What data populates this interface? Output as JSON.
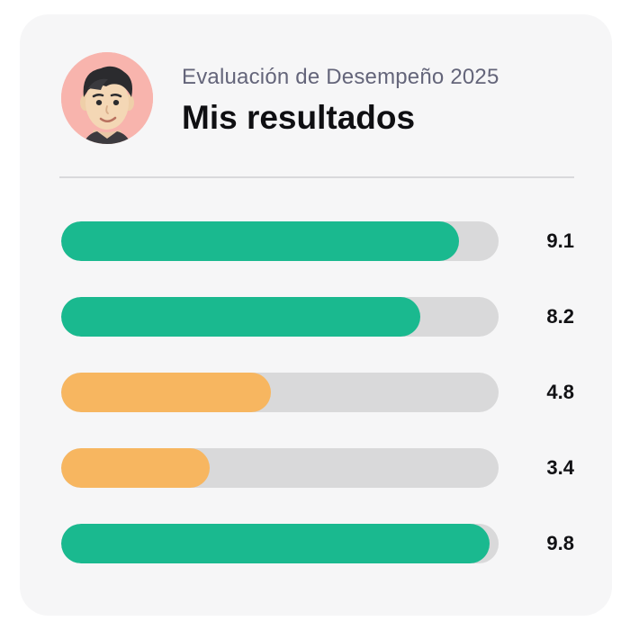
{
  "header": {
    "subtitle": "Evaluación de Desempeño 2025",
    "title": "Mis resultados",
    "avatar_bg": "#f8b4ad"
  },
  "results": {
    "max_score": 10,
    "colors": {
      "high": "#1ab98f",
      "low": "#f7b660",
      "track": "#d9d9da"
    },
    "items": [
      {
        "score": "9.1",
        "level": "high"
      },
      {
        "score": "8.2",
        "level": "high"
      },
      {
        "score": "4.8",
        "level": "low"
      },
      {
        "score": "3.4",
        "level": "low"
      },
      {
        "score": "9.8",
        "level": "high"
      }
    ]
  }
}
